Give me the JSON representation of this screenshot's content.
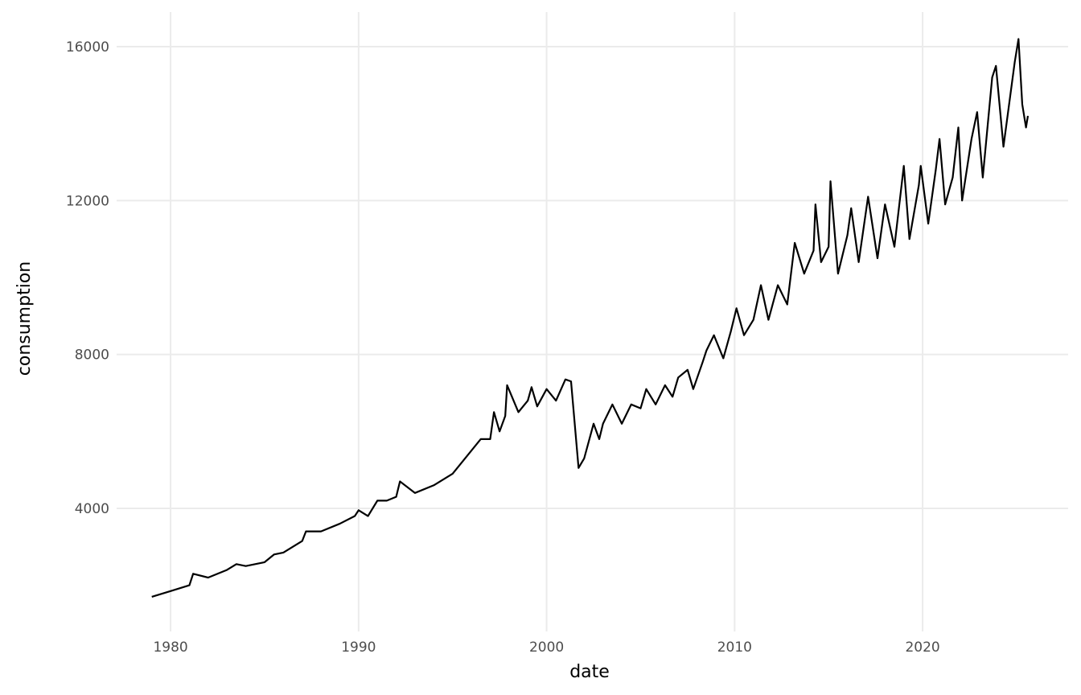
{
  "chart_data": {
    "type": "line",
    "x_label": "date",
    "y_label": "consumption",
    "x": [
      1979.0,
      1980.0,
      1981.0,
      1981.2,
      1982.0,
      1983.0,
      1983.5,
      1984.0,
      1985.0,
      1985.5,
      1986.0,
      1987.0,
      1987.2,
      1988.0,
      1989.0,
      1989.8,
      1990.0,
      1990.5,
      1991.0,
      1991.5,
      1992.0,
      1992.2,
      1993.0,
      1994.0,
      1995.0,
      1995.5,
      1996.0,
      1996.5,
      1997.0,
      1997.2,
      1997.5,
      1997.8,
      1997.9,
      1998.5,
      1999.0,
      1999.2,
      1999.5,
      2000.0,
      2000.5,
      2001.0,
      2001.3,
      2001.7,
      2002.0,
      2002.5,
      2002.8,
      2003.0,
      2003.5,
      2004.0,
      2004.5,
      2005.0,
      2005.3,
      2005.8,
      2006.3,
      2006.7,
      2007.0,
      2007.5,
      2007.8,
      2008.3,
      2008.5,
      2008.9,
      2009.4,
      2009.8,
      2010.1,
      2010.5,
      2011.0,
      2011.4,
      2011.8,
      2012.3,
      2012.8,
      2013.2,
      2013.7,
      2014.2,
      2014.3,
      2014.6,
      2015.0,
      2015.1,
      2015.5,
      2016.0,
      2016.2,
      2016.6,
      2017.1,
      2017.6,
      2018.0,
      2018.5,
      2019.0,
      2019.3,
      2019.8,
      2019.9,
      2020.3,
      2020.7,
      2020.9,
      2021.2,
      2021.6,
      2021.9,
      2022.1,
      2022.6,
      2022.9,
      2023.2,
      2023.7,
      2023.9,
      2024.3,
      2024.9,
      2025.1,
      2025.3,
      2025.5,
      2025.6
    ],
    "series": [
      {
        "color": "#000000",
        "values": [
          1700,
          1850,
          2000,
          2300,
          2200,
          2400,
          2550,
          2500,
          2600,
          2800,
          2850,
          3150,
          3400,
          3400,
          3600,
          3800,
          3950,
          3800,
          4200,
          4200,
          4300,
          4700,
          4400,
          4600,
          4900,
          5200,
          5500,
          5800,
          5800,
          6500,
          6000,
          6400,
          7200,
          6500,
          6800,
          7150,
          6650,
          7100,
          6800,
          7350,
          7300,
          5050,
          5300,
          6200,
          5800,
          6200,
          6700,
          6200,
          6700,
          6600,
          7100,
          6700,
          7200,
          6900,
          7400,
          7600,
          7100,
          7800,
          8100,
          8500,
          7900,
          8600,
          9200,
          8500,
          8900,
          9800,
          8900,
          9800,
          9300,
          10900,
          10100,
          10700,
          11900,
          10400,
          10800,
          12500,
          10100,
          11100,
          11800,
          10400,
          12100,
          10500,
          11900,
          10800,
          12900,
          11000,
          12400,
          12900,
          11400,
          12800,
          13600,
          11900,
          12600,
          13900,
          12000,
          13600,
          14300,
          12600,
          15200,
          15500,
          13400,
          15600,
          16200,
          14500,
          13900,
          14200
        ]
      }
    ],
    "xlim": [
      1977.13,
      2027.74
    ],
    "ylim": [
      800,
      16899
    ],
    "xticks": [
      1980,
      1990,
      2000,
      2010,
      2020
    ],
    "yticks": [
      4000,
      8000,
      12000,
      16000
    ],
    "grid": true
  }
}
